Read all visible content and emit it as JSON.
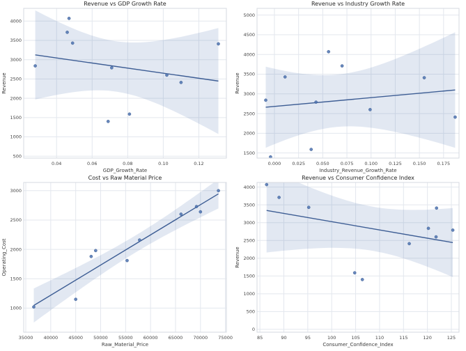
{
  "style": {
    "background": "#ffffff",
    "point_color": "#4c72b0",
    "line_color": "#3d5d94",
    "band_color": "#4c72b0",
    "band_opacity": 0.16,
    "grid_color": "#e3e7ee",
    "spine_color": "#d5d9e0",
    "title_color": "#262626",
    "label_color": "#3a3a3a",
    "tick_color": "#444444"
  },
  "chart_data": [
    {
      "type": "scatter",
      "title": "Revenue vs GDP Growth Rate",
      "xlabel": "GDP_Growth_Rate",
      "ylabel": "Revenue",
      "x": [
        0.028,
        0.047,
        0.046,
        0.049,
        0.071,
        0.069,
        0.081,
        0.102,
        0.11,
        0.131
      ],
      "y": [
        2840,
        4070,
        3710,
        3430,
        2790,
        1400,
        1590,
        2600,
        2410,
        3410
      ],
      "xticks": [
        0.04,
        0.06,
        0.08,
        0.1,
        0.12
      ],
      "xtick_labels": [
        "0.04",
        "0.06",
        "0.08",
        "0.10",
        "0.12"
      ],
      "yticks": [
        500,
        1000,
        1500,
        2000,
        2500,
        3000,
        3500,
        4000
      ],
      "ytick_labels": [
        "500",
        "1000",
        "1500",
        "2000",
        "2500",
        "3000",
        "3500",
        "4000"
      ],
      "xlim": [
        0.0215,
        0.1355
      ],
      "ylim": [
        450,
        4330
      ],
      "regression_line": true,
      "confidence_band": true,
      "grid": true,
      "legend": "none"
    },
    {
      "type": "scatter",
      "title": "Revenue vs Industry Growth Rate",
      "xlabel": "Industry_Revenue_Growth_Rate",
      "ylabel": "Revenue",
      "x": [
        -0.009,
        0.056,
        0.07,
        0.011,
        0.043,
        -0.004,
        0.038,
        0.099,
        0.187,
        0.155
      ],
      "y": [
        2840,
        4070,
        3710,
        3430,
        2790,
        1400,
        1590,
        2600,
        2410,
        3410
      ],
      "xticks": [
        0.0,
        0.025,
        0.05,
        0.075,
        0.1,
        0.125,
        0.15,
        0.175
      ],
      "xtick_labels": [
        "0.000",
        "0.025",
        "0.050",
        "0.075",
        "0.100",
        "0.125",
        "0.150",
        "0.175"
      ],
      "yticks": [
        1500,
        2000,
        2500,
        3000,
        3500,
        4000,
        4500,
        5000
      ],
      "ytick_labels": [
        "1500",
        "2000",
        "2500",
        "3000",
        "3500",
        "4000",
        "4500",
        "5000"
      ],
      "xlim": [
        -0.018,
        0.191
      ],
      "ylim": [
        1370,
        5170
      ],
      "regression_line": true,
      "confidence_band": true,
      "grid": true,
      "legend": "none"
    },
    {
      "type": "scatter",
      "title": "Cost vs Raw Material Price",
      "xlabel": "Raw_Material_Price",
      "ylabel": "Operating_Cost",
      "x": [
        36600,
        45000,
        48100,
        49000,
        55300,
        57800,
        66100,
        69200,
        70000,
        73600
      ],
      "y": [
        1020,
        1150,
        1880,
        1980,
        1810,
        2160,
        2600,
        2730,
        2640,
        3000
      ],
      "xticks": [
        35000,
        40000,
        45000,
        50000,
        55000,
        60000,
        65000,
        70000,
        75000
      ],
      "xtick_labels": [
        "35000",
        "40000",
        "45000",
        "50000",
        "55000",
        "60000",
        "65000",
        "70000",
        "75000"
      ],
      "yticks": [
        1000,
        1500,
        2000,
        2500,
        3000
      ],
      "ytick_labels": [
        "1000",
        "1500",
        "2000",
        "2500",
        "3000"
      ],
      "xlim": [
        34580,
        75190
      ],
      "ylim": [
        590,
        3140
      ],
      "regression_line": true,
      "confidence_band": true,
      "grid": true,
      "legend": "none"
    },
    {
      "type": "scatter",
      "title": "Revenue vs Consumer Confidence Index",
      "xlabel": "Consumer_Confidence_Index",
      "ylabel": "Revenue",
      "x": [
        120.2,
        86.4,
        89.0,
        95.2,
        125.3,
        106.4,
        104.8,
        121.8,
        116.2,
        121.9
      ],
      "y": [
        2840,
        4070,
        3710,
        3430,
        2790,
        1400,
        1590,
        2600,
        2410,
        3410
      ],
      "xticks": [
        85,
        90,
        95,
        100,
        105,
        110,
        115,
        120,
        125
      ],
      "xtick_labels": [
        "85",
        "90",
        "95",
        "100",
        "105",
        "110",
        "115",
        "120",
        "125"
      ],
      "yticks": [
        0,
        500,
        1000,
        1500,
        2000,
        2500,
        3000,
        3500,
        4000
      ],
      "ytick_labels": [
        "0",
        "500",
        "1000",
        "1500",
        "2000",
        "2500",
        "3000",
        "3500",
        "4000"
      ],
      "xlim": [
        84.4,
        126.6
      ],
      "ylim": [
        -80,
        4130
      ],
      "regression_line": true,
      "confidence_band": true,
      "grid": true,
      "legend": "none"
    }
  ]
}
